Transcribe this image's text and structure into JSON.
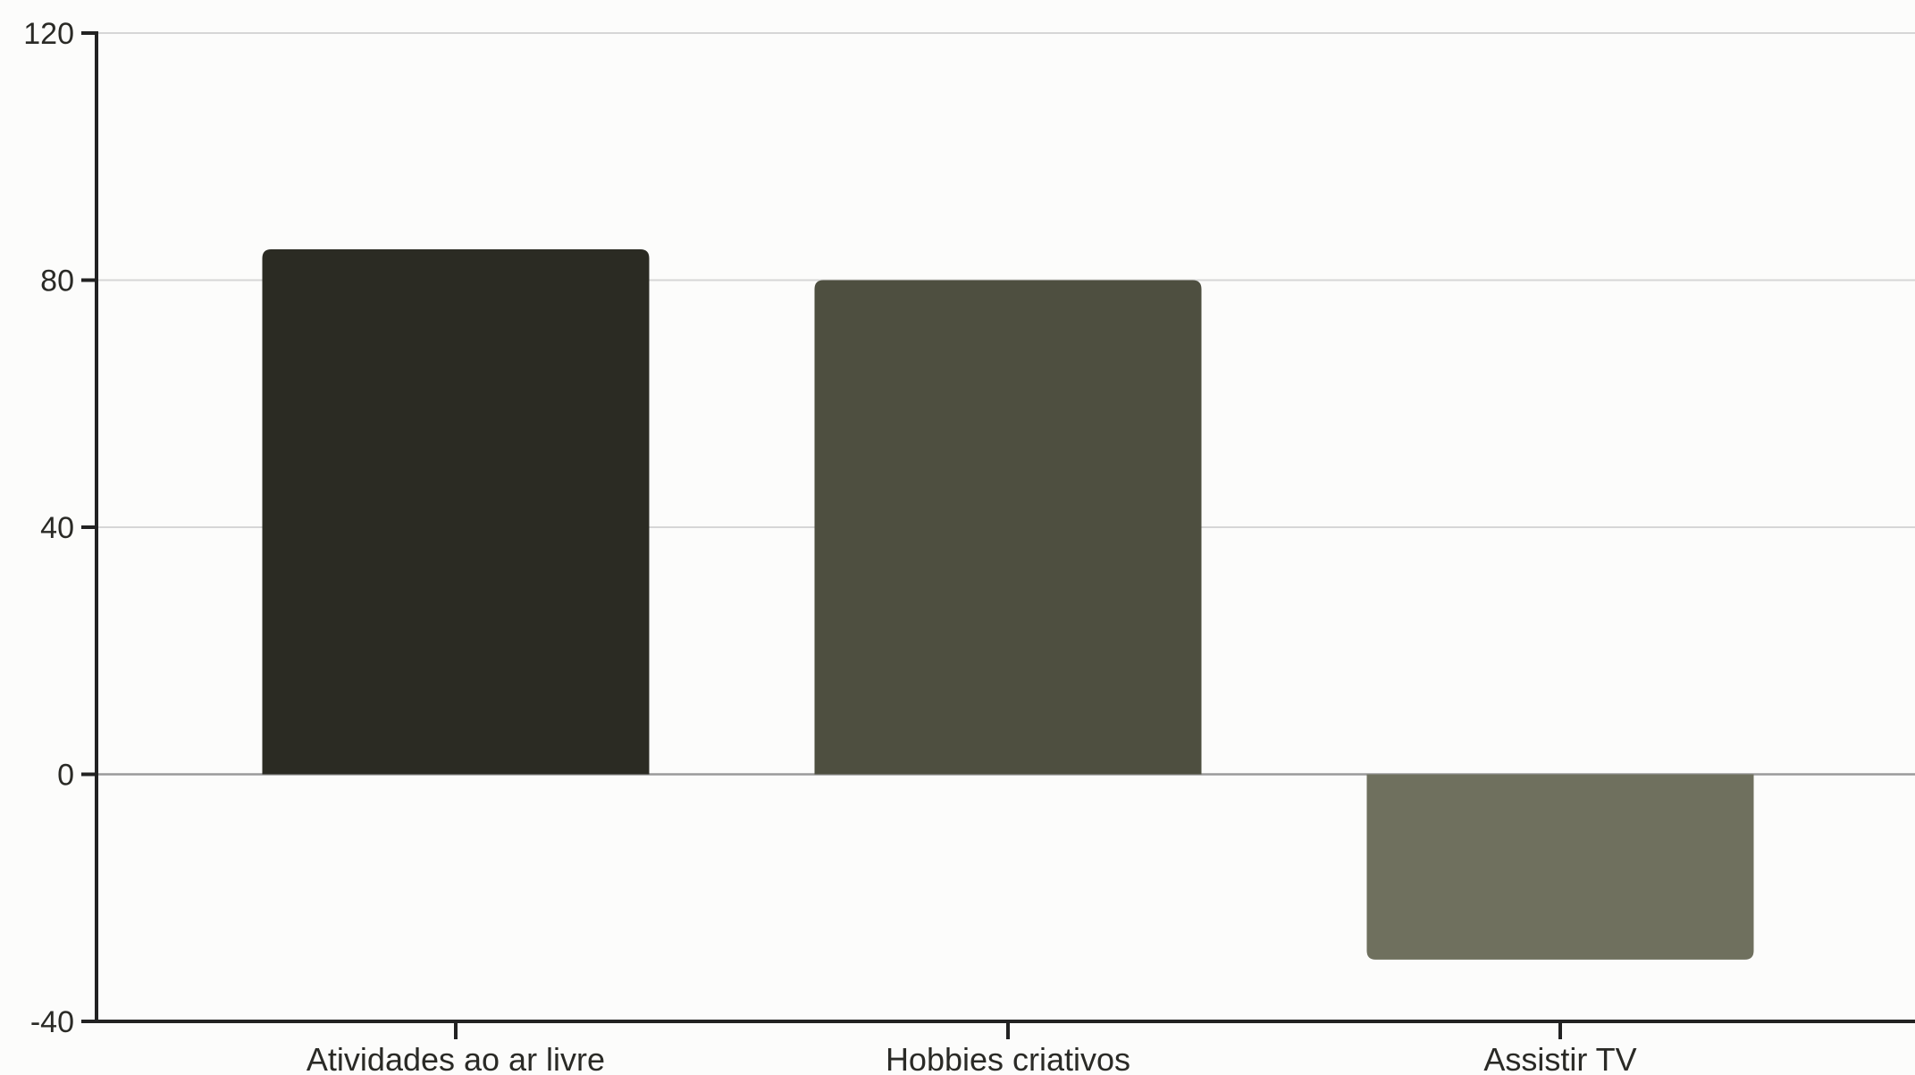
{
  "chart_data": {
    "type": "bar",
    "categories": [
      "Atividades ao ar livre",
      "Hobbies criativos",
      "Assistir TV"
    ],
    "values": [
      85,
      80,
      -30
    ],
    "bar_colors": [
      "#2b2b23",
      "#4e4f40",
      "#6f705e"
    ],
    "xlabel": "",
    "ylabel": "",
    "ylim": [
      -40,
      120
    ],
    "yticks": [
      -40,
      0,
      40,
      80,
      120
    ],
    "grid": true,
    "legend": "none"
  },
  "colors": {
    "background": "#fcfcfb",
    "axis": "#222222",
    "gridline": "#d6d6d6",
    "zero_line": "#9a9a9a",
    "text": "#2a2a26"
  }
}
